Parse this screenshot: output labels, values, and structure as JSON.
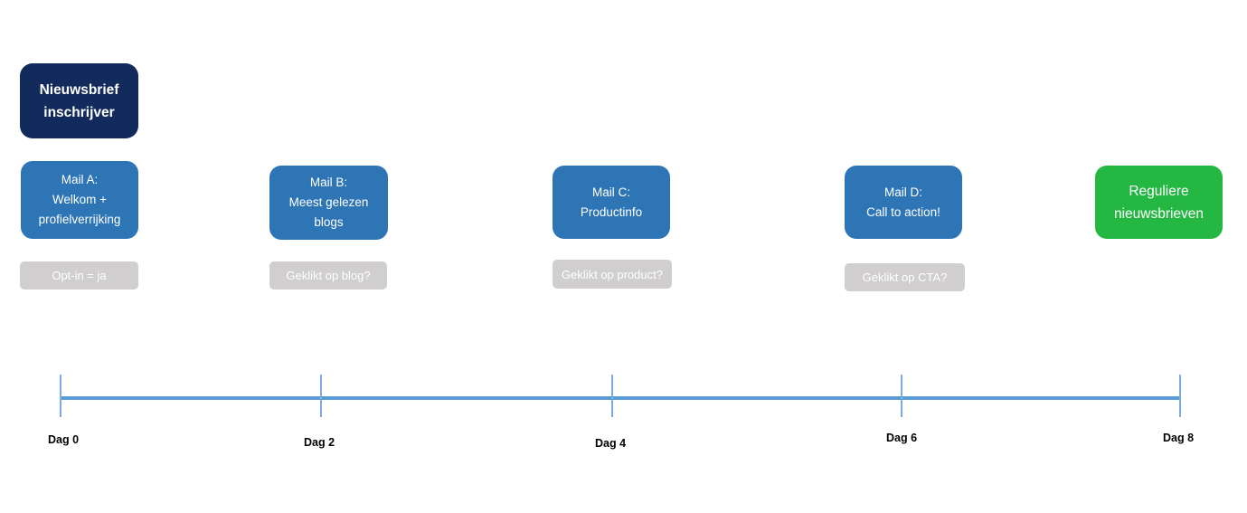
{
  "diagram": {
    "start": {
      "label": "Nieuwsbrief\ninschrijver"
    },
    "mails": [
      {
        "label": "Mail A:\nWelkom +\nprofielverrijking",
        "condition": "Opt-in = ja"
      },
      {
        "label": "Mail B:\nMeest gelezen\nblogs",
        "condition": "Geklikt op blog?"
      },
      {
        "label": "Mail C:\nProductinfo",
        "condition": "Geklikt op product?"
      },
      {
        "label": "Mail D:\nCall to action!",
        "condition": "Geklikt op CTA?"
      }
    ],
    "end": {
      "label": "Reguliere\nnieuwsbrieven"
    },
    "timeline": {
      "labels": [
        "Dag 0",
        "Dag 2",
        "Dag 4",
        "Dag 6",
        "Dag 8"
      ]
    },
    "colors": {
      "start_node": "#122B5C",
      "mail_node": "#2E75B6",
      "end_node": "#24B843",
      "condition_node": "#D0CECE",
      "timeline_line": "#5B9BD5",
      "timeline_tick": "#7FACDE",
      "node_text": "#FFFFFF",
      "timeline_label_text": "#000000"
    }
  }
}
